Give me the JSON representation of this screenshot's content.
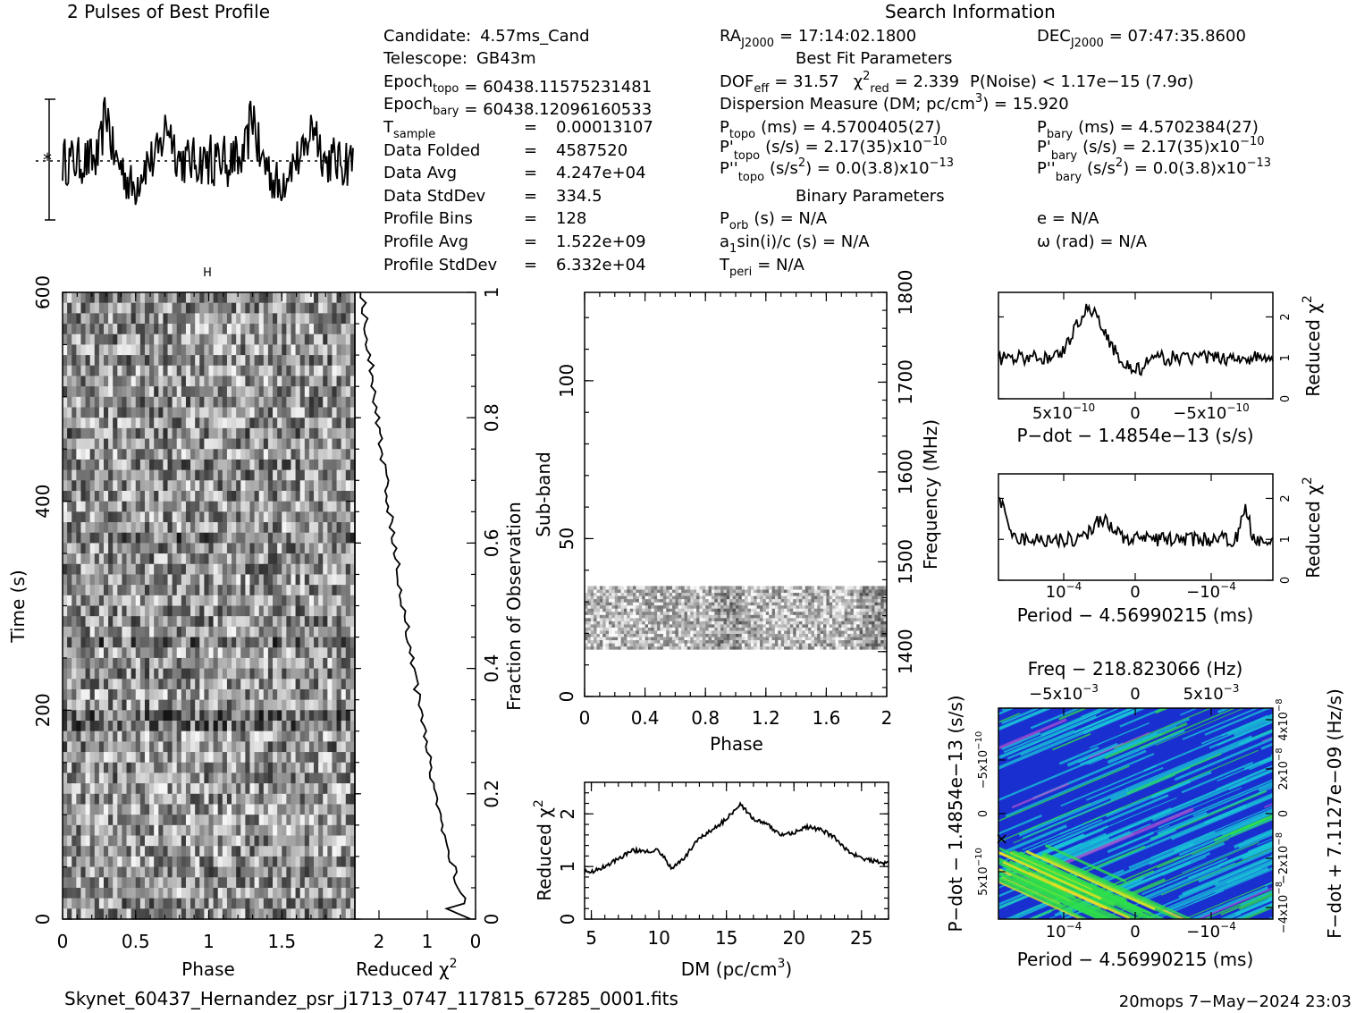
{
  "profile_title": "2 Pulses of Best Profile",
  "search_title": "Search Information",
  "info_col1": [
    {
      "label": "Candidate:",
      "value": "4.57ms_Cand"
    },
    {
      "label": "Telescope:",
      "value": "GB43m"
    },
    {
      "label": "Epoch",
      "sub": "topo",
      "value": "= 60438.11575231481"
    },
    {
      "label": "Epoch",
      "sub": "bary",
      "value": "= 60438.12096160533"
    },
    {
      "label": "T",
      "sub": "sample",
      "value": "0.00013107"
    },
    {
      "label": "Data Folded",
      "value": "4587520"
    },
    {
      "label": "Data Avg",
      "value": "4.247e+04"
    },
    {
      "label": "Data StdDev",
      "value": "334.5"
    },
    {
      "label": "Profile Bins",
      "value": "128"
    },
    {
      "label": "Profile Avg",
      "value": "1.522e+09"
    },
    {
      "label": "Profile StdDev",
      "value": "6.332e+04"
    }
  ],
  "info_col2": {
    "ra": "RA",
    "ra_sub": "J2000",
    "ra_val": "= 17:14:02.1800",
    "dec": "DEC",
    "dec_sub": "J2000",
    "dec_val": "= 07:47:35.8600",
    "best_fit_title": "Best Fit Parameters",
    "dof": "DOF",
    "dof_sub": "eff",
    "dof_val": "= 31.57",
    "chi": "χ",
    "chi_sup": "2",
    "chi_sub": "red",
    "chi_val": "= 2.339",
    "pnoise": "P(Noise) < 1.17e−15   (7.9σ)",
    "dm_line": "Dispersion Measure (DM; pc/cm",
    "dm_sup": "3",
    "dm_val": ") = 15.920",
    "ptopo": "P",
    "ptopo_sub": "topo",
    "ptopo_val": "(ms)  =  4.5700405(27)",
    "pbary": "P",
    "pbary_sub": "bary",
    "pbary_val": "(ms)  =  4.5702384(27)",
    "pdtopo": "P'",
    "pdtopo_sub": "topo",
    "pdtopo_val": "(s/s)  =  2.17(35)x10",
    "pdtopo_exp": "−10",
    "pdbary": "P'",
    "pdbary_sub": "bary",
    "pdbary_val": "(s/s)  =  2.17(35)x10",
    "pdbary_exp": "−10",
    "pddtopo": "P''",
    "pddtopo_sub": "topo",
    "pddtopo_val": "(s/s",
    "pddtopo_sup": "2",
    "pddtopo_val2": ") = 0.0(3.8)x10",
    "pddtopo_exp": "−13",
    "pddbary": "P''",
    "pddbary_sub": "bary",
    "pddbary_val": "(s/s",
    "pddbary_sup": "2",
    "pddbary_val2": ") = 0.0(3.8)x10",
    "pddbary_exp": "−13",
    "binary_title": "Binary Parameters",
    "porb": "P",
    "porb_sub": "orb",
    "porb_val": "(s) = N/A",
    "ecc": "e = N/A",
    "a1": "a",
    "a1_sub": "1",
    "a1_val": "sin(i)/c (s) = N/A",
    "omega": "ω (rad) = N/A",
    "tperi": "T",
    "tperi_sub": "peri",
    "tperi_val": "= N/A"
  },
  "footer_file": "Skynet_60437_Hernandez_psr_j1713_0747_117815_67285_0001.fits",
  "footer_stamp": "20mops   7−May−2024 23:03",
  "labels": {
    "time_axis": "Time (s)",
    "phase_axis": "Phase",
    "reduced": "Reduced χ",
    "reduced_sup": "2",
    "fraction_axis": "Fraction of Observation",
    "subband_axis": "Sub-band",
    "freq_axis": "Frequency (MHz)",
    "dm_axis": "DM (pc/cm",
    "dm_axis_sup": "3",
    "dm_axis_end": ")",
    "pdot_axis": "P−dot − 1.4854e−13 (s/s)",
    "period_axis": "Period − 4.56990215 (ms)",
    "freq_title": "Freq − 218.823066 (Hz)",
    "pdot_vert": "P−dot − 1.4854e−13 (s/s)",
    "fdot_vert": "F−dot + 7.1127e−09 (Hz/s)"
  },
  "ticks": {
    "time": [
      "0",
      "200",
      "400",
      "600"
    ],
    "phase": [
      "0",
      "0.5",
      "1",
      "1.5"
    ],
    "redchi_bottom": [
      "2",
      "1",
      "0"
    ],
    "fraction": [
      "0",
      "0.2",
      "0.4",
      "0.6",
      "0.8",
      "1"
    ],
    "subband": [
      "0",
      "50",
      "100"
    ],
    "phase2": [
      "0",
      "0.4",
      "0.8",
      "1.2",
      "1.6",
      "2"
    ],
    "freq": [
      "1400",
      "1500",
      "1600",
      "1700",
      "1800"
    ],
    "dm_y": [
      "0",
      "1",
      "2"
    ],
    "dm_x": [
      "5",
      "10",
      "15",
      "20",
      "25"
    ],
    "pdot_y": [
      "0",
      "1",
      "2"
    ],
    "pdot_x": [
      "5x10",
      "0",
      "−5x10"
    ],
    "pdot_x_exp": "−10",
    "period_y": [
      "0",
      "1",
      "2"
    ],
    "period_x": [
      "10",
      "0",
      "−10"
    ],
    "period_x_exp": "−4",
    "ppd_top": [
      "−5x10",
      "0",
      "5x10"
    ],
    "ppd_top_exp": "−3",
    "ppd_left": [
      "−5x10",
      "0",
      "5x10"
    ],
    "ppd_left_exp": "−10",
    "ppd_right": [
      "−4x10",
      "−2x10",
      "0",
      "2x10",
      "4x10"
    ],
    "ppd_right_exp": "−8",
    "ppd_bottom": [
      "10",
      "0",
      "−10"
    ],
    "ppd_bottom_exp": "−4"
  },
  "colors": {
    "ink": "#000000",
    "ppd_blue": "#1a2fd0",
    "ppd_cyan": "#18c8d8",
    "ppd_green": "#2ee04a",
    "ppd_yellow": "#f0e020"
  },
  "chart_data": [
    {
      "type": "line",
      "title": "2 Pulses of Best Profile",
      "note": "two cycles of the folded pulse profile"
    },
    {
      "type": "heatmap",
      "xlabel": "Phase",
      "ylabel": "Time (s)",
      "xlim": [
        0,
        2
      ],
      "ylim": [
        0,
        600
      ]
    },
    {
      "type": "line",
      "xlabel": "Reduced χ2",
      "ylabel": "Fraction of Observation",
      "xlim": [
        2.5,
        0
      ],
      "ylim": [
        0,
        1
      ]
    },
    {
      "type": "heatmap",
      "xlabel": "Phase",
      "ylabel": "Sub-band",
      "y2label": "Frequency (MHz)",
      "xlim": [
        0,
        2
      ],
      "ylim": [
        0,
        128
      ],
      "y2lim": [
        1350,
        1800
      ],
      "filled_subbands": [
        15,
        35
      ]
    },
    {
      "type": "line",
      "xlabel": "DM (pc/cm3)",
      "ylabel": "Reduced χ2",
      "xlim": [
        4.5,
        27
      ],
      "ylim": [
        0,
        2.6
      ],
      "x": [
        5,
        6,
        7,
        8,
        9,
        10,
        11,
        12,
        13,
        14,
        15,
        16,
        17,
        18,
        19,
        20,
        21,
        22,
        23,
        24,
        25,
        26,
        27
      ],
      "y": [
        0.9,
        1.0,
        1.15,
        1.3,
        1.3,
        1.3,
        0.95,
        1.2,
        1.55,
        1.7,
        1.9,
        2.2,
        1.9,
        1.8,
        1.6,
        1.65,
        1.75,
        1.7,
        1.55,
        1.3,
        1.15,
        1.1,
        1.05
      ]
    },
    {
      "type": "line",
      "xlabel": "P−dot − 1.4854e−13 (s/s)",
      "ylabel": "Reduced χ2",
      "ylim": [
        0,
        2.6
      ]
    },
    {
      "type": "line",
      "xlabel": "Period − 4.56990215 (ms)",
      "ylabel": "Reduced χ2",
      "ylim": [
        0,
        2.6
      ]
    },
    {
      "type": "heatmap",
      "title": "Freq − 218.823066 (Hz)",
      "xlabel": "Period − 4.56990215 (ms)",
      "ylabel": "P−dot − 1.4854e−13 (s/s)",
      "y2label": "F−dot + 7.1127e−09 (Hz/s)"
    }
  ]
}
